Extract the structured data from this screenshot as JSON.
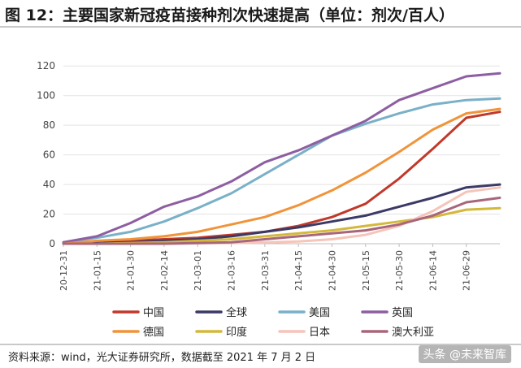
{
  "header": {
    "title": "图 12：主要国家新冠疫苗接种剂次快速提高（单位：剂次/百人）"
  },
  "footer": {
    "source": "资料来源：wind，光大证券研究所，数据截至 2021 年 7 月 2 日",
    "watermark": "头条 @未来智库"
  },
  "chart_data": {
    "type": "line",
    "title": "",
    "xlabel": "",
    "ylabel": "",
    "ylim": [
      0,
      130
    ],
    "yticks": [
      0,
      20,
      40,
      60,
      80,
      100,
      120
    ],
    "grid": true,
    "legend_position": "bottom",
    "x": [
      "20-12-31",
      "21-01-15",
      "21-01-30",
      "21-02-14",
      "21-03-01",
      "21-03-16",
      "21-03-31",
      "21-04-15",
      "21-04-30",
      "21-05-15",
      "21-05-30",
      "21-06-14",
      "21-06-29",
      "21-07-02"
    ],
    "x_tick_labels": [
      "20-12-31",
      "21-01-15",
      "21-01-30",
      "21-02-14",
      "21-03-01",
      "21-03-16",
      "21-03-31",
      "21-04-15",
      "21-04-30",
      "21-05-15",
      "21-05-30",
      "21-06-14",
      "21-06-29"
    ],
    "series": [
      {
        "name": "中国",
        "color": "#c0392b",
        "values": [
          0,
          1,
          2,
          3,
          4,
          6,
          8,
          12,
          18,
          27,
          44,
          64,
          85,
          89
        ]
      },
      {
        "name": "全球",
        "color": "#3b3a66",
        "values": [
          0,
          0.5,
          1,
          2,
          3,
          5,
          8,
          11,
          15,
          19,
          25,
          31,
          38,
          40
        ]
      },
      {
        "name": "美国",
        "color": "#7ab0c8",
        "values": [
          1,
          4,
          8,
          15,
          24,
          34,
          47,
          60,
          73,
          81,
          88,
          94,
          97,
          98
        ]
      },
      {
        "name": "英国",
        "color": "#8e5ea2",
        "values": [
          1,
          5,
          14,
          25,
          32,
          42,
          55,
          63,
          73,
          83,
          97,
          105,
          113,
          115
        ]
      },
      {
        "name": "德国",
        "color": "#f0943a",
        "values": [
          0,
          2,
          3,
          5,
          8,
          13,
          18,
          26,
          36,
          48,
          62,
          77,
          88,
          91
        ]
      },
      {
        "name": "印度",
        "color": "#d4b83a",
        "values": [
          0,
          0,
          0.5,
          1,
          2,
          3,
          5,
          7,
          9,
          12,
          15,
          18,
          23,
          24
        ]
      },
      {
        "name": "日本",
        "color": "#f6c4b8",
        "values": [
          0,
          0,
          0,
          0,
          0.3,
          0.5,
          0.8,
          1.5,
          3,
          6,
          12,
          22,
          35,
          38
        ]
      },
      {
        "name": "澳大利亚",
        "color": "#a8667a",
        "values": [
          0,
          0,
          0,
          0,
          0.5,
          1,
          3,
          5,
          7,
          9,
          13,
          19,
          28,
          31
        ]
      }
    ]
  }
}
